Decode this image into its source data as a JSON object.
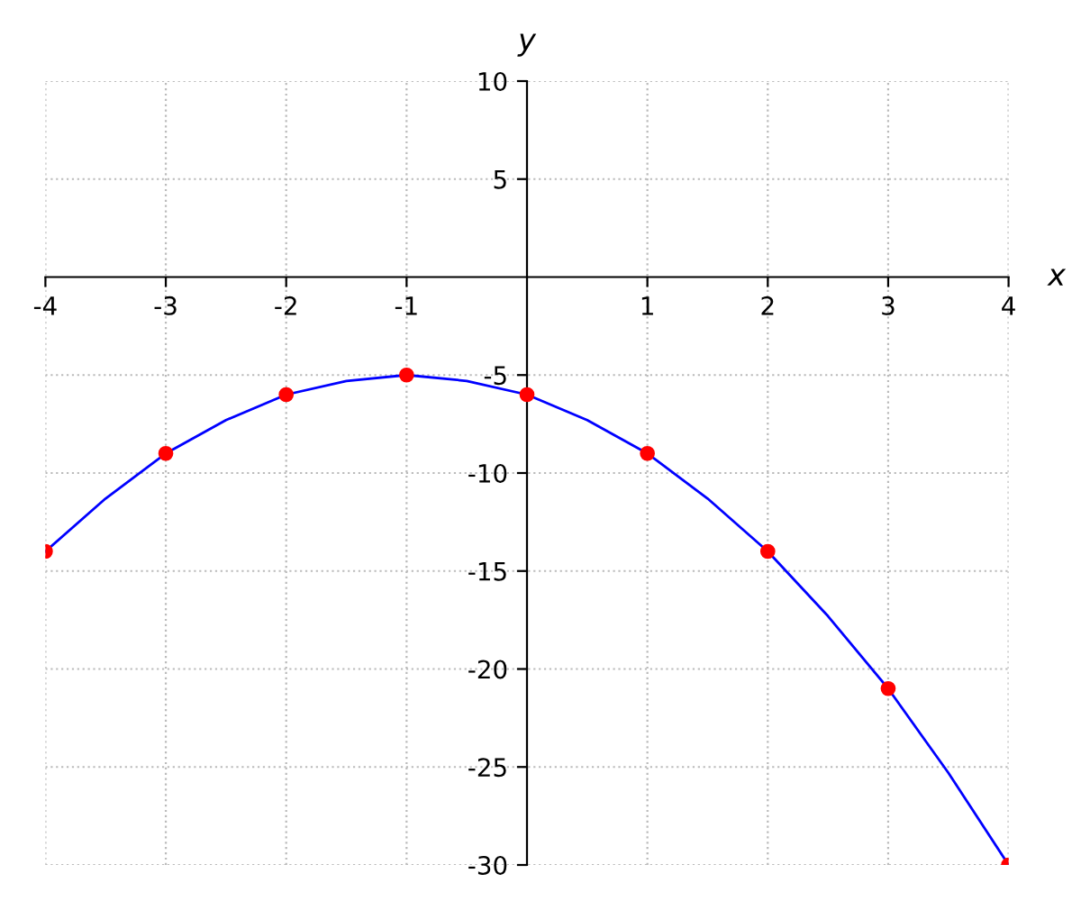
{
  "chart_data": {
    "type": "line",
    "xlabel": "x",
    "ylabel": "y",
    "series": [
      {
        "color": "#0000ff",
        "marker": "none",
        "x": [
          -4,
          -3.5,
          -3,
          -2.5,
          -2,
          -1.5,
          -1,
          -0.5,
          0,
          0.5,
          1,
          1.5,
          2,
          2.5,
          3,
          3.5,
          4
        ],
        "values": [
          -14,
          -11.3,
          -9,
          -7.3,
          -6,
          -5.3,
          -5,
          -5.3,
          -6,
          -7.3,
          -9,
          -11.3,
          -14,
          -17.3,
          -21,
          -25.3,
          -30
        ]
      },
      {
        "type": "scatter",
        "color": "#ff0000",
        "marker": "circle",
        "x": [
          -4,
          -3,
          -2,
          -1,
          0,
          1,
          2,
          3,
          4
        ],
        "values": [
          -14,
          -9,
          -6,
          -5,
          -6,
          -9,
          -14,
          -21,
          -30
        ]
      }
    ],
    "xlim": [
      -4,
      4
    ],
    "ylim": [
      -30,
      10
    ],
    "xticks": [
      -4,
      -3,
      -2,
      -1,
      1,
      2,
      3,
      4
    ],
    "yticks": [
      -30,
      -25,
      -20,
      -15,
      -10,
      -5,
      5,
      10
    ],
    "grid": true
  }
}
